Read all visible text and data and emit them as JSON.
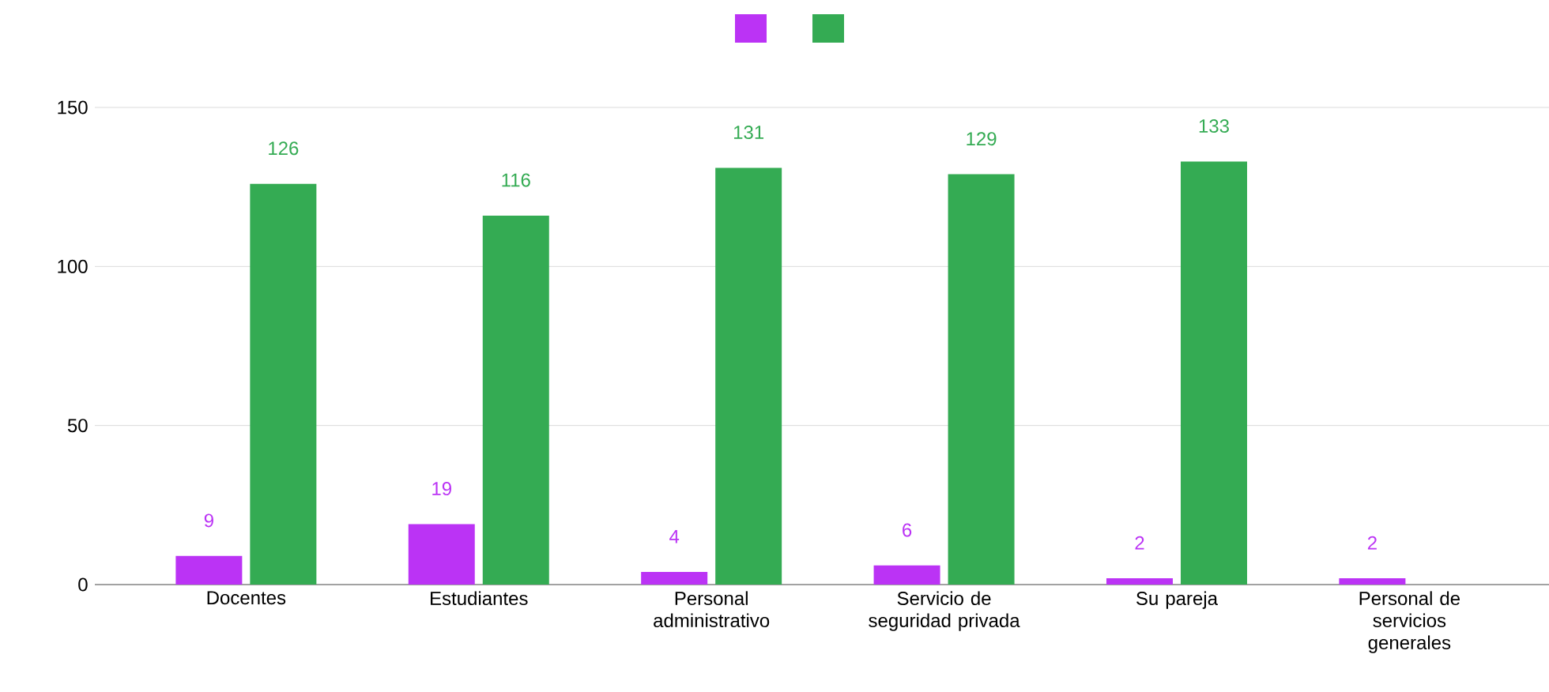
{
  "chart_data": {
    "type": "bar",
    "categories": [
      "Docentes",
      "Estudiantes",
      "Personal administrativo",
      "Servicio de seguridad privada",
      "Su pareja",
      "Personal de servicios generales"
    ],
    "series": [
      {
        "color": "#bb33f5",
        "values": [
          9,
          19,
          4,
          6,
          2,
          2
        ]
      },
      {
        "color": "#34ab53",
        "values": [
          126,
          116,
          131,
          129,
          133,
          null
        ]
      }
    ],
    "ylim": [
      0,
      150
    ],
    "yticks": [
      0,
      50,
      100,
      150
    ],
    "grid": "y",
    "data_labels": true
  }
}
